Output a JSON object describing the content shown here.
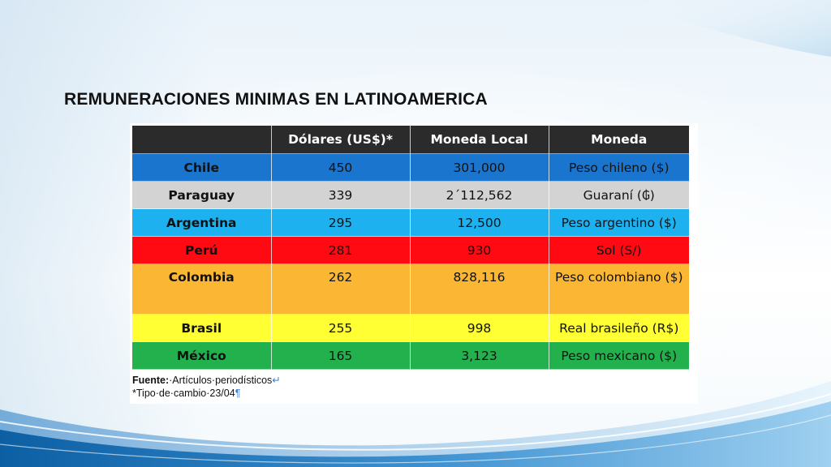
{
  "slide": {
    "title": "REMUNERACIONES MINIMAS EN LATINOAMERICA"
  },
  "table": {
    "headers": [
      "",
      "Dólares (US$)*",
      "Moneda Local",
      "Moneda"
    ],
    "rows": [
      {
        "country": "Chile",
        "usd": "450",
        "local": "301,000",
        "currency": "Peso chileno ($)",
        "color": "#1a75cf"
      },
      {
        "country": "Paraguay",
        "usd": "339",
        "local": "2´112,562",
        "currency": "Guaraní (₲)",
        "color": "#d3d3d3"
      },
      {
        "country": "Argentina",
        "usd": "295",
        "local": "12,500",
        "currency": "Peso argentino ($)",
        "color": "#1db2ef"
      },
      {
        "country": "Perú",
        "usd": "281",
        "local": "930",
        "currency": "Sol (S/)",
        "color": "#ff0a12"
      },
      {
        "country": "Colombia",
        "usd": "262",
        "local": "828,116",
        "currency": "Peso colombiano ($)",
        "color": "#fbb733"
      },
      {
        "country": "Brasil",
        "usd": "255",
        "local": "998",
        "currency": "Real brasileño (R$)",
        "color": "#ffff33"
      },
      {
        "country": "México",
        "usd": "165",
        "local": "3,123",
        "currency": "Peso mexicano ($)",
        "color": "#22b14c"
      }
    ]
  },
  "notes": {
    "source_label": "Fuente:",
    "source_text": "·Artículos·periodísticos",
    "line_break_mark": "↵",
    "exchange_text": "*Tipo·de·cambio·23/04",
    "pilcrow_mark": "¶"
  }
}
